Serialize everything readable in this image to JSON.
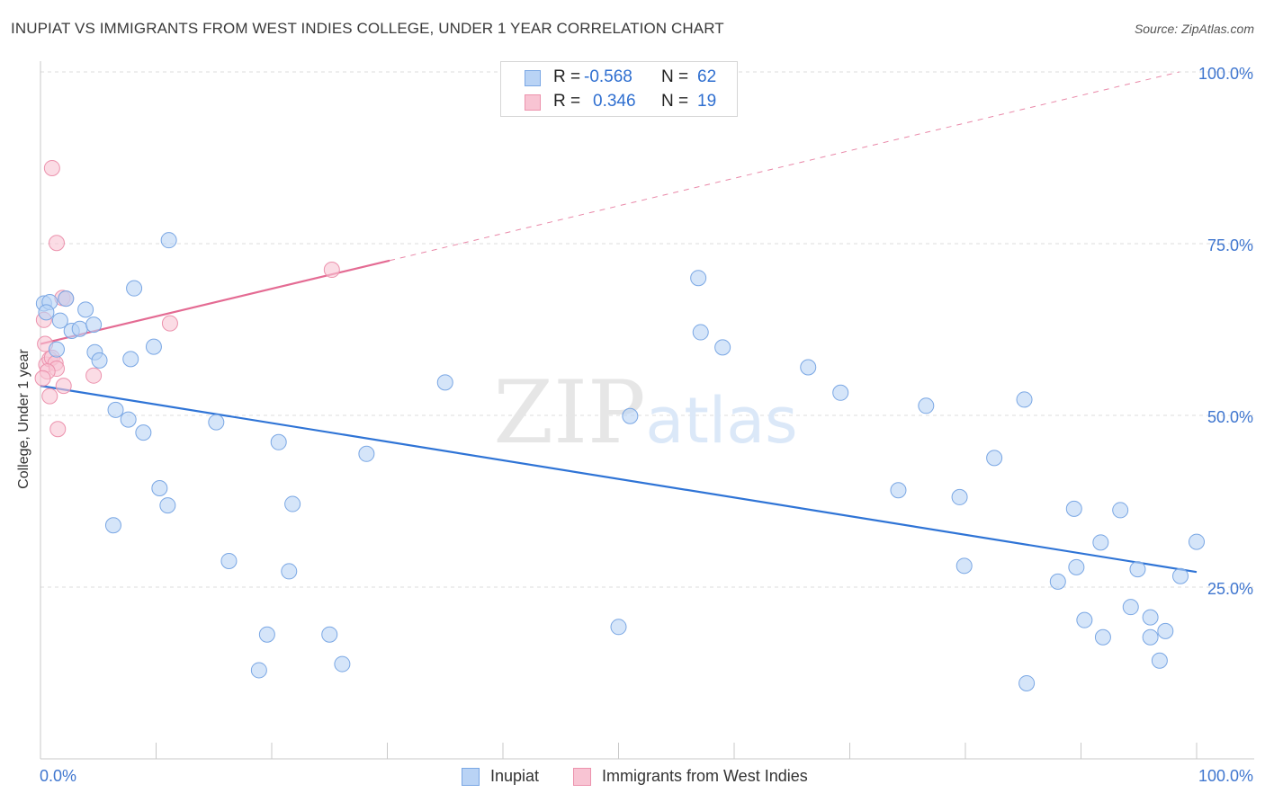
{
  "header": {
    "title": "INUPIAT VS IMMIGRANTS FROM WEST INDIES COLLEGE, UNDER 1 YEAR CORRELATION CHART",
    "source": "Source: ZipAtlas.com"
  },
  "watermark": {
    "zip": "ZIP",
    "atlas": "atlas"
  },
  "legend_top": {
    "rows": [
      {
        "r_label": "R =",
        "r_value": "-0.568",
        "n_label": "N =",
        "n_value": "62"
      },
      {
        "r_label": "R =",
        "r_value": "0.346",
        "n_label": "N =",
        "n_value": "19"
      }
    ]
  },
  "legend_bottom": {
    "series1": "Inupiat",
    "series2": "Immigrants from West Indies"
  },
  "colors": {
    "blue_fill": "#b9d3f5",
    "blue_stroke": "#7aa7e4",
    "blue_line": "#2f74d6",
    "pink_fill": "#f8c4d3",
    "pink_stroke": "#ec92ad",
    "pink_line": "#e46b93",
    "tick_text": "#3f76cf",
    "grid": "#dcdcdc"
  },
  "chart_data": {
    "type": "scatter",
    "title": "INUPIAT VS IMMIGRANTS FROM WEST INDIES COLLEGE, UNDER 1 YEAR CORRELATION CHART",
    "xlabel": "",
    "ylabel": "College, Under 1 year",
    "xlim": [
      0,
      100
    ],
    "ylim": [
      0,
      100
    ],
    "x_tick_labels": [
      "0.0%",
      "100.0%"
    ],
    "y_tick_labels": [
      "25.0%",
      "50.0%",
      "75.0%",
      "100.0%"
    ],
    "y_tick_values": [
      25,
      50,
      75,
      100
    ],
    "grid": true,
    "legend_position": "top-center",
    "series": [
      {
        "name": "Inupiat",
        "r": -0.568,
        "n": 62,
        "trend": {
          "x": [
            0,
            100
          ],
          "y": [
            54.3,
            27.2
          ],
          "style": "solid"
        },
        "points": [
          [
            0.3,
            66.3
          ],
          [
            0.8,
            66.5
          ],
          [
            1.4,
            59.6
          ],
          [
            1.7,
            63.8
          ],
          [
            2.2,
            67.0
          ],
          [
            2.7,
            62.3
          ],
          [
            3.4,
            62.6
          ],
          [
            3.9,
            65.4
          ],
          [
            4.6,
            63.2
          ],
          [
            4.7,
            59.2
          ],
          [
            5.1,
            58.0
          ],
          [
            6.5,
            50.8
          ],
          [
            7.6,
            49.4
          ],
          [
            7.8,
            58.2
          ],
          [
            8.1,
            68.5
          ],
          [
            8.9,
            47.5
          ],
          [
            9.8,
            60.0
          ],
          [
            10.3,
            39.4
          ],
          [
            11.0,
            36.9
          ],
          [
            11.1,
            75.5
          ],
          [
            6.3,
            34.0
          ],
          [
            15.2,
            49.0
          ],
          [
            16.3,
            28.8
          ],
          [
            18.9,
            12.9
          ],
          [
            19.6,
            18.1
          ],
          [
            20.6,
            46.1
          ],
          [
            21.5,
            27.3
          ],
          [
            21.8,
            37.1
          ],
          [
            25.0,
            18.1
          ],
          [
            26.1,
            13.8
          ],
          [
            28.2,
            44.4
          ],
          [
            35.0,
            54.8
          ],
          [
            50.0,
            19.2
          ],
          [
            51.0,
            49.9
          ],
          [
            56.9,
            70.0
          ],
          [
            57.1,
            62.1
          ],
          [
            59.0,
            59.9
          ],
          [
            66.4,
            57.0
          ],
          [
            69.2,
            53.3
          ],
          [
            74.2,
            39.1
          ],
          [
            76.6,
            51.4
          ],
          [
            79.5,
            38.1
          ],
          [
            79.9,
            28.1
          ],
          [
            82.5,
            43.8
          ],
          [
            85.1,
            52.3
          ],
          [
            85.3,
            11.0
          ],
          [
            88.0,
            25.8
          ],
          [
            89.4,
            36.4
          ],
          [
            89.6,
            27.9
          ],
          [
            90.3,
            20.2
          ],
          [
            91.7,
            31.5
          ],
          [
            91.9,
            17.7
          ],
          [
            93.4,
            36.2
          ],
          [
            94.3,
            22.1
          ],
          [
            94.9,
            27.6
          ],
          [
            96.0,
            20.6
          ],
          [
            96.0,
            17.7
          ],
          [
            96.8,
            14.3
          ],
          [
            97.3,
            18.6
          ],
          [
            98.6,
            26.6
          ],
          [
            100.0,
            31.6
          ],
          [
            0.5,
            65.0
          ]
        ]
      },
      {
        "name": "Immigrants from West Indies",
        "r": 0.346,
        "n": 19,
        "trend": {
          "x": [
            0,
            100
          ],
          "y": [
            60.4,
            100.6
          ],
          "solid_until_x": 30.2
        },
        "points": [
          [
            1.0,
            86.0
          ],
          [
            1.4,
            75.1
          ],
          [
            1.9,
            67.1
          ],
          [
            2.2,
            67.0
          ],
          [
            0.3,
            63.9
          ],
          [
            0.4,
            60.4
          ],
          [
            0.5,
            57.4
          ],
          [
            0.8,
            58.2
          ],
          [
            1.0,
            58.4
          ],
          [
            1.3,
            57.6
          ],
          [
            1.4,
            56.8
          ],
          [
            0.6,
            56.4
          ],
          [
            0.2,
            55.4
          ],
          [
            0.8,
            52.8
          ],
          [
            1.5,
            48.0
          ],
          [
            2.0,
            54.3
          ],
          [
            4.6,
            55.8
          ],
          [
            11.2,
            63.4
          ],
          [
            25.2,
            71.2
          ]
        ]
      }
    ]
  }
}
